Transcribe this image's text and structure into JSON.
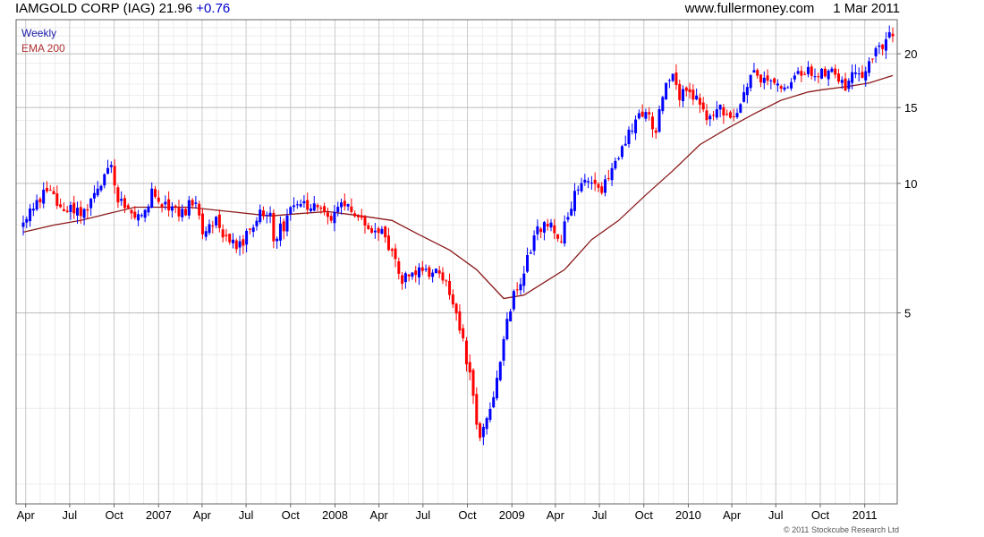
{
  "header": {
    "ticker_text": "IAMGOLD CORP (IAG) 21.96",
    "change": "+0.76",
    "site": "www.fullermoney.com",
    "date": "1 Mar 2011"
  },
  "legend": {
    "weekly": "Weekly",
    "ema": "EMA 200"
  },
  "copyright": "© 2011 Stockcube Research Ltd",
  "colors": {
    "up": "#0000ff",
    "down": "#ff0000",
    "ema": "#8b1a1a",
    "grid": "#dddddd"
  },
  "chart_data": {
    "type": "candlestick",
    "scale": "log",
    "frequency": "weekly",
    "ylim": [
      1.8,
      24
    ],
    "y_ticks": [
      5,
      10,
      15,
      20
    ],
    "grid": true,
    "x_range": [
      "2006-03-27",
      "2011-02-28"
    ],
    "x_ticks": [
      {
        "label": "Apr",
        "date": "2006-04-01"
      },
      {
        "label": "Jul",
        "date": "2006-07-01"
      },
      {
        "label": "Oct",
        "date": "2006-10-01"
      },
      {
        "label": "2007",
        "date": "2007-01-01"
      },
      {
        "label": "Apr",
        "date": "2007-04-01"
      },
      {
        "label": "Jul",
        "date": "2007-07-01"
      },
      {
        "label": "Oct",
        "date": "2007-10-01"
      },
      {
        "label": "2008",
        "date": "2008-01-01"
      },
      {
        "label": "Apr",
        "date": "2008-04-01"
      },
      {
        "label": "Jul",
        "date": "2008-07-01"
      },
      {
        "label": "Oct",
        "date": "2008-10-01"
      },
      {
        "label": "2009",
        "date": "2009-01-01"
      },
      {
        "label": "Apr",
        "date": "2009-04-01"
      },
      {
        "label": "Jul",
        "date": "2009-07-01"
      },
      {
        "label": "Oct",
        "date": "2009-10-01"
      },
      {
        "label": "2010",
        "date": "2010-01-01"
      },
      {
        "label": "Apr",
        "date": "2010-04-01"
      },
      {
        "label": "Jul",
        "date": "2010-07-01"
      },
      {
        "label": "Oct",
        "date": "2010-10-01"
      },
      {
        "label": "2011",
        "date": "2011-01-01"
      }
    ],
    "close_path": [
      [
        "2006-03-27",
        8.2
      ],
      [
        "2006-04-24",
        8.9
      ],
      [
        "2006-05-15",
        9.7
      ],
      [
        "2006-06-12",
        8.8
      ],
      [
        "2006-07-10",
        8.7
      ],
      [
        "2006-07-31",
        8.5
      ],
      [
        "2006-08-21",
        9.3
      ],
      [
        "2006-09-11",
        10.6
      ],
      [
        "2006-09-25",
        11.3
      ],
      [
        "2006-10-09",
        9.0
      ],
      [
        "2006-11-06",
        8.6
      ],
      [
        "2006-11-27",
        8.5
      ],
      [
        "2006-12-18",
        9.4
      ],
      [
        "2007-01-15",
        8.9
      ],
      [
        "2007-02-19",
        8.6
      ],
      [
        "2007-03-19",
        9.1
      ],
      [
        "2007-04-02",
        7.6
      ],
      [
        "2007-04-30",
        8.1
      ],
      [
        "2007-05-21",
        7.5
      ],
      [
        "2007-06-18",
        7.2
      ],
      [
        "2007-07-09",
        7.7
      ],
      [
        "2007-07-30",
        8.4
      ],
      [
        "2007-08-20",
        8.8
      ],
      [
        "2007-08-27",
        7.4
      ],
      [
        "2007-09-17",
        8.0
      ],
      [
        "2007-10-08",
        8.8
      ],
      [
        "2007-11-05",
        8.9
      ],
      [
        "2007-11-26",
        8.6
      ],
      [
        "2007-12-17",
        8.3
      ],
      [
        "2008-01-14",
        9.0
      ],
      [
        "2008-02-04",
        8.6
      ],
      [
        "2008-03-03",
        8.1
      ],
      [
        "2008-04-07",
        7.7
      ],
      [
        "2008-04-28",
        7.0
      ],
      [
        "2008-05-12",
        6.0
      ],
      [
        "2008-06-09",
        6.2
      ],
      [
        "2008-07-07",
        6.2
      ],
      [
        "2008-07-28",
        6.4
      ],
      [
        "2008-08-25",
        5.6
      ],
      [
        "2008-09-15",
        4.7
      ],
      [
        "2008-10-06",
        3.6
      ],
      [
        "2008-10-27",
        2.5
      ],
      [
        "2008-11-17",
        3.0
      ],
      [
        "2008-12-08",
        3.9
      ],
      [
        "2008-12-29",
        5.2
      ],
      [
        "2009-01-26",
        6.3
      ],
      [
        "2009-02-23",
        7.8
      ],
      [
        "2009-03-23",
        8.0
      ],
      [
        "2009-04-13",
        7.5
      ],
      [
        "2009-05-11",
        9.3
      ],
      [
        "2009-06-08",
        10.3
      ],
      [
        "2009-07-06",
        9.6
      ],
      [
        "2009-08-03",
        11.0
      ],
      [
        "2009-08-24",
        12.4
      ],
      [
        "2009-09-14",
        14.0
      ],
      [
        "2009-10-05",
        14.5
      ],
      [
        "2009-10-26",
        13.3
      ],
      [
        "2009-11-09",
        16.3
      ],
      [
        "2009-11-30",
        18.6
      ],
      [
        "2009-12-14",
        16.0
      ],
      [
        "2010-01-04",
        16.0
      ],
      [
        "2010-01-25",
        15.3
      ],
      [
        "2010-02-08",
        14.0
      ],
      [
        "2010-03-01",
        14.8
      ],
      [
        "2010-03-29",
        14.5
      ],
      [
        "2010-04-19",
        15.3
      ],
      [
        "2010-05-10",
        17.8
      ],
      [
        "2010-06-07",
        17.5
      ],
      [
        "2010-06-28",
        17.4
      ],
      [
        "2010-07-26",
        16.3
      ],
      [
        "2010-08-16",
        18.0
      ],
      [
        "2010-09-06",
        18.4
      ],
      [
        "2010-09-27",
        17.7
      ],
      [
        "2010-10-18",
        18.5
      ],
      [
        "2010-11-08",
        17.5
      ],
      [
        "2010-11-22",
        16.5
      ],
      [
        "2010-12-06",
        17.6
      ],
      [
        "2010-12-27",
        18.1
      ],
      [
        "2011-01-10",
        18.8
      ],
      [
        "2011-01-31",
        21.0
      ],
      [
        "2011-02-14",
        21.4
      ],
      [
        "2011-02-28",
        21.96
      ]
    ],
    "ema_200": [
      [
        "2006-03-27",
        7.7
      ],
      [
        "2006-05-29",
        8.0
      ],
      [
        "2006-07-24",
        8.2
      ],
      [
        "2006-09-18",
        8.5
      ],
      [
        "2006-11-13",
        8.8
      ],
      [
        "2007-01-08",
        8.8
      ],
      [
        "2007-03-05",
        8.8
      ],
      [
        "2007-05-28",
        8.6
      ],
      [
        "2007-08-20",
        8.4
      ],
      [
        "2007-10-15",
        8.5
      ],
      [
        "2007-12-17",
        8.6
      ],
      [
        "2008-02-25",
        8.4
      ],
      [
        "2008-04-28",
        8.2
      ],
      [
        "2008-06-23",
        7.6
      ],
      [
        "2008-08-25",
        7.0
      ],
      [
        "2008-10-20",
        6.3
      ],
      [
        "2008-12-15",
        5.4
      ],
      [
        "2009-01-26",
        5.5
      ],
      [
        "2009-04-20",
        6.3
      ],
      [
        "2009-06-15",
        7.4
      ],
      [
        "2009-08-10",
        8.2
      ],
      [
        "2009-10-05",
        9.4
      ],
      [
        "2009-11-30",
        10.7
      ],
      [
        "2010-01-25",
        12.3
      ],
      [
        "2010-03-22",
        13.4
      ],
      [
        "2010-05-17",
        14.5
      ],
      [
        "2010-07-12",
        15.6
      ],
      [
        "2010-09-06",
        16.3
      ],
      [
        "2010-10-04",
        16.5
      ],
      [
        "2010-11-29",
        16.8
      ],
      [
        "2011-01-10",
        17.1
      ],
      [
        "2011-02-28",
        17.8
      ]
    ]
  }
}
